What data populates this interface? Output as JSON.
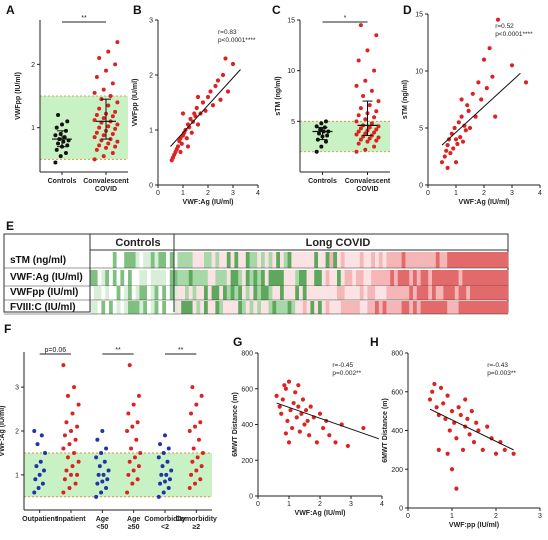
{
  "panel_e": {
    "group_labels": [
      "Controls",
      "Long COVID"
    ],
    "row_labels": [
      "sTM (ng/ml)",
      "VWF:Ag (IU/ml)",
      "VWFpp (IU/ml)",
      "FVIII:C (IU/ml)"
    ]
  },
  "chart_data": [
    {
      "panel": "A",
      "type": "scatter",
      "ylabel": "VWFpp (IU/ml)",
      "categories": [
        "Controls",
        "Convalescent\nCOVID"
      ],
      "yticks": [
        "1",
        "2"
      ],
      "ylim": [
        0.3,
        2.7
      ],
      "normal_range": [
        0.5,
        1.5
      ],
      "significance": "**",
      "series": [
        {
          "values": [
            0.45,
            0.55,
            0.6,
            0.65,
            0.7,
            0.72,
            0.75,
            0.78,
            0.8,
            0.82,
            0.85,
            0.88,
            0.9,
            0.95,
            1.0,
            1.05,
            1.1,
            1.2
          ]
        },
        {
          "values": [
            0.5,
            0.55,
            0.6,
            0.65,
            0.68,
            0.7,
            0.72,
            0.75,
            0.78,
            0.8,
            0.82,
            0.85,
            0.88,
            0.9,
            0.92,
            0.95,
            0.98,
            1.0,
            1.02,
            1.05,
            1.08,
            1.1,
            1.12,
            1.15,
            1.18,
            1.2,
            1.22,
            1.25,
            1.3,
            1.35,
            1.4,
            1.45,
            1.5,
            1.55,
            1.6,
            1.7,
            1.8,
            1.9,
            2.0,
            2.1,
            2.2,
            2.35
          ]
        }
      ]
    },
    {
      "panel": "B",
      "type": "scatter",
      "xlabel": "VWF:Ag (IU/ml)",
      "ylabel": "VWFpp (IU/ml)",
      "xticks": [
        "0",
        "1",
        "2",
        "3",
        "4"
      ],
      "yticks": [
        "0",
        "1",
        "2",
        "3"
      ],
      "xlim": [
        0,
        4
      ],
      "ylim": [
        0,
        3
      ],
      "stat": [
        "r=0.83",
        "p<0.0001****"
      ],
      "fit": [
        [
          0.5,
          0.7
        ],
        [
          3.3,
          2.1
        ]
      ],
      "points": [
        [
          0.55,
          0.45
        ],
        [
          0.6,
          0.5
        ],
        [
          0.65,
          0.55
        ],
        [
          0.7,
          0.6
        ],
        [
          0.75,
          0.65
        ],
        [
          0.8,
          0.7
        ],
        [
          0.85,
          0.8
        ],
        [
          0.9,
          0.85
        ],
        [
          0.95,
          0.75
        ],
        [
          1.0,
          0.9
        ],
        [
          1.05,
          0.95
        ],
        [
          1.1,
          1.0
        ],
        [
          1.15,
          0.85
        ],
        [
          1.2,
          1.1
        ],
        [
          1.25,
          1.05
        ],
        [
          1.3,
          1.2
        ],
        [
          1.35,
          0.95
        ],
        [
          1.4,
          1.15
        ],
        [
          1.45,
          1.3
        ],
        [
          1.5,
          1.25
        ],
        [
          1.55,
          1.4
        ],
        [
          1.6,
          1.1
        ],
        [
          1.7,
          1.3
        ],
        [
          1.8,
          1.5
        ],
        [
          1.9,
          1.35
        ],
        [
          2.0,
          1.6
        ],
        [
          2.1,
          1.7
        ],
        [
          2.2,
          1.45
        ],
        [
          2.3,
          1.8
        ],
        [
          2.4,
          1.9
        ],
        [
          2.5,
          1.55
        ],
        [
          2.6,
          2.0
        ],
        [
          2.8,
          1.7
        ],
        [
          3.0,
          2.2
        ],
        [
          1.0,
          1.3
        ],
        [
          1.2,
          0.7
        ],
        [
          0.9,
          0.6
        ],
        [
          1.6,
          1.6
        ],
        [
          2.7,
          2.3
        ]
      ]
    },
    {
      "panel": "C",
      "type": "scatter",
      "ylabel": "sTM (ng/ml)",
      "categories": [
        "Controls",
        "Convalescent\nCOVID"
      ],
      "yticks": [
        "5",
        "10",
        "15"
      ],
      "ylim": [
        0,
        15
      ],
      "normal_range": [
        2,
        5
      ],
      "significance": "*",
      "series": [
        {
          "values": [
            2.0,
            2.5,
            3.0,
            3.2,
            3.5,
            3.6,
            3.8,
            4.0,
            4.0,
            4.2,
            4.4,
            4.5,
            4.8,
            5.0
          ]
        },
        {
          "values": [
            2.0,
            2.2,
            2.5,
            2.8,
            3.0,
            3.1,
            3.2,
            3.3,
            3.4,
            3.5,
            3.6,
            3.7,
            3.8,
            3.9,
            4.0,
            4.1,
            4.2,
            4.3,
            4.4,
            4.5,
            4.6,
            4.8,
            5.0,
            5.2,
            5.4,
            5.6,
            5.8,
            6.0,
            6.3,
            6.6,
            7.0,
            7.5,
            8.0,
            8.5,
            9.0,
            10.0,
            11.0,
            12.0,
            13.5,
            14.5
          ]
        }
      ]
    },
    {
      "panel": "D",
      "type": "scatter",
      "xlabel": "VWF:Ag (IU/ml)",
      "ylabel": "sTM (ng/ml)",
      "xticks": [
        "0",
        "1",
        "2",
        "3",
        "4"
      ],
      "yticks": [
        "0",
        "5",
        "10",
        "15"
      ],
      "xlim": [
        0,
        4
      ],
      "ylim": [
        0,
        15
      ],
      "stat": [
        "r=0.52",
        "p<0.0001****"
      ],
      "fit": [
        [
          0.5,
          3.5
        ],
        [
          3.3,
          9.8
        ]
      ],
      "points": [
        [
          0.5,
          2.0
        ],
        [
          0.6,
          2.5
        ],
        [
          0.65,
          3.0
        ],
        [
          0.7,
          3.5
        ],
        [
          0.75,
          4.0
        ],
        [
          0.8,
          2.8
        ],
        [
          0.85,
          4.5
        ],
        [
          0.9,
          3.2
        ],
        [
          0.95,
          5.0
        ],
        [
          1.0,
          4.0
        ],
        [
          1.05,
          3.6
        ],
        [
          1.1,
          5.5
        ],
        [
          1.15,
          4.2
        ],
        [
          1.2,
          6.0
        ],
        [
          1.25,
          3.8
        ],
        [
          1.3,
          5.2
        ],
        [
          1.35,
          4.8
        ],
        [
          1.4,
          7.0
        ],
        [
          1.45,
          6.5
        ],
        [
          1.5,
          5.0
        ],
        [
          1.6,
          8.0
        ],
        [
          1.7,
          6.0
        ],
        [
          1.8,
          9.0
        ],
        [
          1.9,
          7.5
        ],
        [
          2.0,
          11.0
        ],
        [
          2.1,
          8.5
        ],
        [
          2.2,
          12.0
        ],
        [
          2.3,
          9.5
        ],
        [
          2.5,
          14.5
        ],
        [
          3.0,
          10.5
        ],
        [
          0.7,
          1.5
        ],
        [
          1.0,
          2.0
        ],
        [
          1.2,
          7.5
        ],
        [
          2.4,
          6.0
        ],
        [
          3.5,
          9.0
        ]
      ]
    },
    {
      "panel": "F",
      "type": "scatter",
      "ylabel": "VWF:Ag (IU/ml)",
      "categories": [
        "Outpatient",
        "Inpatient",
        "Age\n<50",
        "Age\n≥50",
        "Comorbidity\n<2",
        "Comorbidity\n≥2"
      ],
      "yticks": [
        "1",
        "2",
        "3"
      ],
      "ylim": [
        0.2,
        3.8
      ],
      "normal_range": [
        0.5,
        1.5
      ],
      "comparisons": [
        {
          "pair": [
            0,
            1
          ],
          "label": "p=0.06"
        },
        {
          "pair": [
            2,
            3
          ],
          "label": "**"
        },
        {
          "pair": [
            4,
            5
          ],
          "label": "**"
        }
      ],
      "series": [
        {
          "color": "#2233aa",
          "values": [
            0.6,
            0.7,
            0.8,
            0.9,
            1.0,
            1.1,
            1.2,
            1.3,
            1.5,
            1.7,
            1.9,
            2.0
          ]
        },
        {
          "color": "#dd2222",
          "values": [
            0.6,
            0.7,
            0.8,
            0.9,
            1.0,
            1.0,
            1.1,
            1.2,
            1.3,
            1.4,
            1.5,
            1.6,
            1.7,
            1.8,
            1.9,
            2.0,
            2.1,
            2.2,
            2.4,
            2.6,
            2.8,
            3.0,
            3.5
          ]
        },
        {
          "color": "#2233aa",
          "values": [
            0.5,
            0.6,
            0.7,
            0.8,
            0.85,
            0.9,
            1.0,
            1.0,
            1.1,
            1.2,
            1.3,
            1.4,
            1.5,
            1.6,
            1.8,
            2.0
          ]
        },
        {
          "color": "#dd2222",
          "values": [
            0.6,
            0.8,
            0.9,
            1.0,
            1.1,
            1.2,
            1.3,
            1.4,
            1.5,
            1.6,
            1.8,
            2.0,
            2.1,
            2.2,
            2.4,
            2.6,
            2.8,
            3.5
          ]
        },
        {
          "color": "#2233aa",
          "values": [
            0.5,
            0.6,
            0.7,
            0.8,
            0.85,
            0.9,
            1.0,
            1.0,
            1.1,
            1.2,
            1.3,
            1.4,
            1.5,
            1.6,
            1.7,
            1.9
          ]
        },
        {
          "color": "#dd2222",
          "values": [
            0.7,
            0.8,
            0.9,
            1.0,
            1.1,
            1.2,
            1.3,
            1.4,
            1.5,
            1.6,
            1.8,
            2.0,
            2.1,
            2.2,
            2.4,
            2.6,
            2.8,
            3.0
          ]
        }
      ]
    },
    {
      "panel": "G",
      "type": "scatter",
      "xlabel": "VWF:Ag (IU/ml)",
      "ylabel": "6MWT Distance (m)",
      "xticks": [
        "0",
        "1",
        "2",
        "3",
        "4"
      ],
      "yticks": [
        "0",
        "200",
        "400",
        "600",
        "800"
      ],
      "xlim": [
        0,
        4
      ],
      "ylim": [
        0,
        800
      ],
      "stat": [
        "r=-0.45",
        "p=0.002**"
      ],
      "fit": [
        [
          0.6,
          520
        ],
        [
          3.9,
          320
        ]
      ],
      "points": [
        [
          0.6,
          560
        ],
        [
          0.7,
          500
        ],
        [
          0.75,
          460
        ],
        [
          0.8,
          540
        ],
        [
          0.85,
          620
        ],
        [
          0.9,
          600
        ],
        [
          0.95,
          420
        ],
        [
          1.0,
          640
        ],
        [
          1.05,
          480
        ],
        [
          1.1,
          380
        ],
        [
          1.15,
          520
        ],
        [
          1.2,
          580
        ],
        [
          1.25,
          440
        ],
        [
          1.3,
          500
        ],
        [
          1.35,
          360
        ],
        [
          1.4,
          460
        ],
        [
          1.45,
          540
        ],
        [
          1.5,
          400
        ],
        [
          1.55,
          480
        ],
        [
          1.6,
          420
        ],
        [
          1.65,
          340
        ],
        [
          1.7,
          500
        ],
        [
          1.8,
          440
        ],
        [
          1.9,
          300
        ],
        [
          2.0,
          460
        ],
        [
          2.1,
          380
        ],
        [
          2.2,
          420
        ],
        [
          2.3,
          340
        ],
        [
          2.5,
          300
        ],
        [
          2.7,
          400
        ],
        [
          2.9,
          280
        ],
        [
          3.4,
          380
        ],
        [
          1.0,
          300
        ],
        [
          0.9,
          350
        ],
        [
          1.3,
          620
        ]
      ]
    },
    {
      "panel": "H",
      "type": "scatter",
      "xlabel": "VWF:pp (IU/ml)",
      "ylabel": "6MWT Distance (m)",
      "xticks": [
        "0",
        "1",
        "2",
        "3"
      ],
      "yticks": [
        "0",
        "200",
        "400",
        "600",
        "800"
      ],
      "xlim": [
        0,
        3
      ],
      "ylim": [
        0,
        800
      ],
      "stat": [
        "r=-0.43",
        "p=0.003**"
      ],
      "fit": [
        [
          0.5,
          510
        ],
        [
          2.4,
          300
        ]
      ],
      "points": [
        [
          0.5,
          560
        ],
        [
          0.55,
          600
        ],
        [
          0.6,
          640
        ],
        [
          0.65,
          520
        ],
        [
          0.7,
          480
        ],
        [
          0.75,
          620
        ],
        [
          0.8,
          540
        ],
        [
          0.85,
          460
        ],
        [
          0.9,
          580
        ],
        [
          0.95,
          400
        ],
        [
          1.0,
          500
        ],
        [
          1.05,
          440
        ],
        [
          1.1,
          360
        ],
        [
          1.15,
          520
        ],
        [
          1.2,
          480
        ],
        [
          1.25,
          300
        ],
        [
          1.3,
          420
        ],
        [
          1.35,
          460
        ],
        [
          1.4,
          380
        ],
        [
          1.45,
          500
        ],
        [
          1.5,
          340
        ],
        [
          1.55,
          440
        ],
        [
          1.6,
          400
        ],
        [
          1.7,
          300
        ],
        [
          1.8,
          420
        ],
        [
          1.9,
          360
        ],
        [
          2.0,
          280
        ],
        [
          2.1,
          340
        ],
        [
          2.2,
          300
        ],
        [
          2.4,
          280
        ],
        [
          1.0,
          200
        ],
        [
          1.1,
          100
        ],
        [
          0.9,
          280
        ],
        [
          1.3,
          560
        ],
        [
          0.7,
          300
        ]
      ]
    }
  ]
}
